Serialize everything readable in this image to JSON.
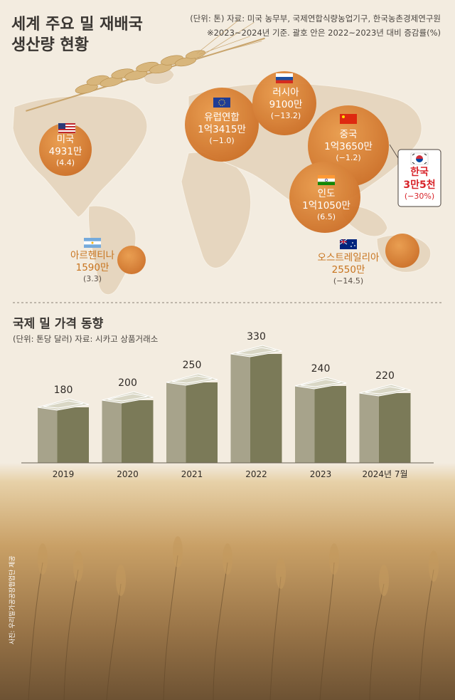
{
  "header": {
    "title_line1": "세계 주요 밀 재배국",
    "title_line2": "생산량 현황",
    "unit_source": "(단위: 톤) 자료: 미국 농무부, 국제연합식량농업기구, 한국농촌경제연구원",
    "base_note": "※2023~2024년 기준. 괄호 안은 2022~2023년 대비 증감률(%)"
  },
  "map": {
    "countries": [
      {
        "id": "usa",
        "name": "미국",
        "production": "4931만",
        "change": "(4.4)",
        "flag": "us-flag"
      },
      {
        "id": "eu",
        "name": "유럽연합",
        "production": "1억3415만",
        "change": "(−1.0)",
        "flag": "eu-flag"
      },
      {
        "id": "russia",
        "name": "러시아",
        "production": "9100만",
        "change": "(−13.2)",
        "flag": "russia-flag"
      },
      {
        "id": "china",
        "name": "중국",
        "production": "1억3650만",
        "change": "(−1.2)",
        "flag": "china-flag"
      },
      {
        "id": "india",
        "name": "인도",
        "production": "1억1050만",
        "change": "(6.5)",
        "flag": "india-flag"
      },
      {
        "id": "korea",
        "name": "한국",
        "production": "3만5천",
        "change": "(−30%)",
        "flag": "korea-flag"
      },
      {
        "id": "argentina",
        "name": "아르헨티나",
        "production": "1590만",
        "change": "(3.3)",
        "flag": "argentina-flag"
      },
      {
        "id": "australia",
        "name": "오스트레일리아",
        "production": "2550만",
        "change": "(−14.5)",
        "flag": "australia-flag"
      }
    ],
    "colors": {
      "bubble": "#d9802c",
      "bubble_dark": "#b8601a",
      "land": "#e7d8c2",
      "korea_text": "#d8242a"
    }
  },
  "price_section": {
    "title": "국제 밀 가격 동향",
    "unit_source": "(단위: 톤당 달러) 자료: 시카고 상품거래소"
  },
  "chart_data": {
    "type": "bar",
    "title": "국제 밀 가격 동향",
    "categories": [
      "2019",
      "2020",
      "2021",
      "2022",
      "2023",
      "2024년 7월"
    ],
    "values": [
      180,
      200,
      250,
      330,
      240,
      220
    ],
    "ylabel": "",
    "xlabel": "",
    "ylim": [
      0,
      330
    ],
    "grid": false,
    "colors": {
      "bar_front": "#a7a38b",
      "bar_side": "#7b7a58",
      "bar_top": "#d9d7c5"
    }
  },
  "footer": {
    "photo_credit": "사진: 우리밀가공공장협업단 제공"
  }
}
